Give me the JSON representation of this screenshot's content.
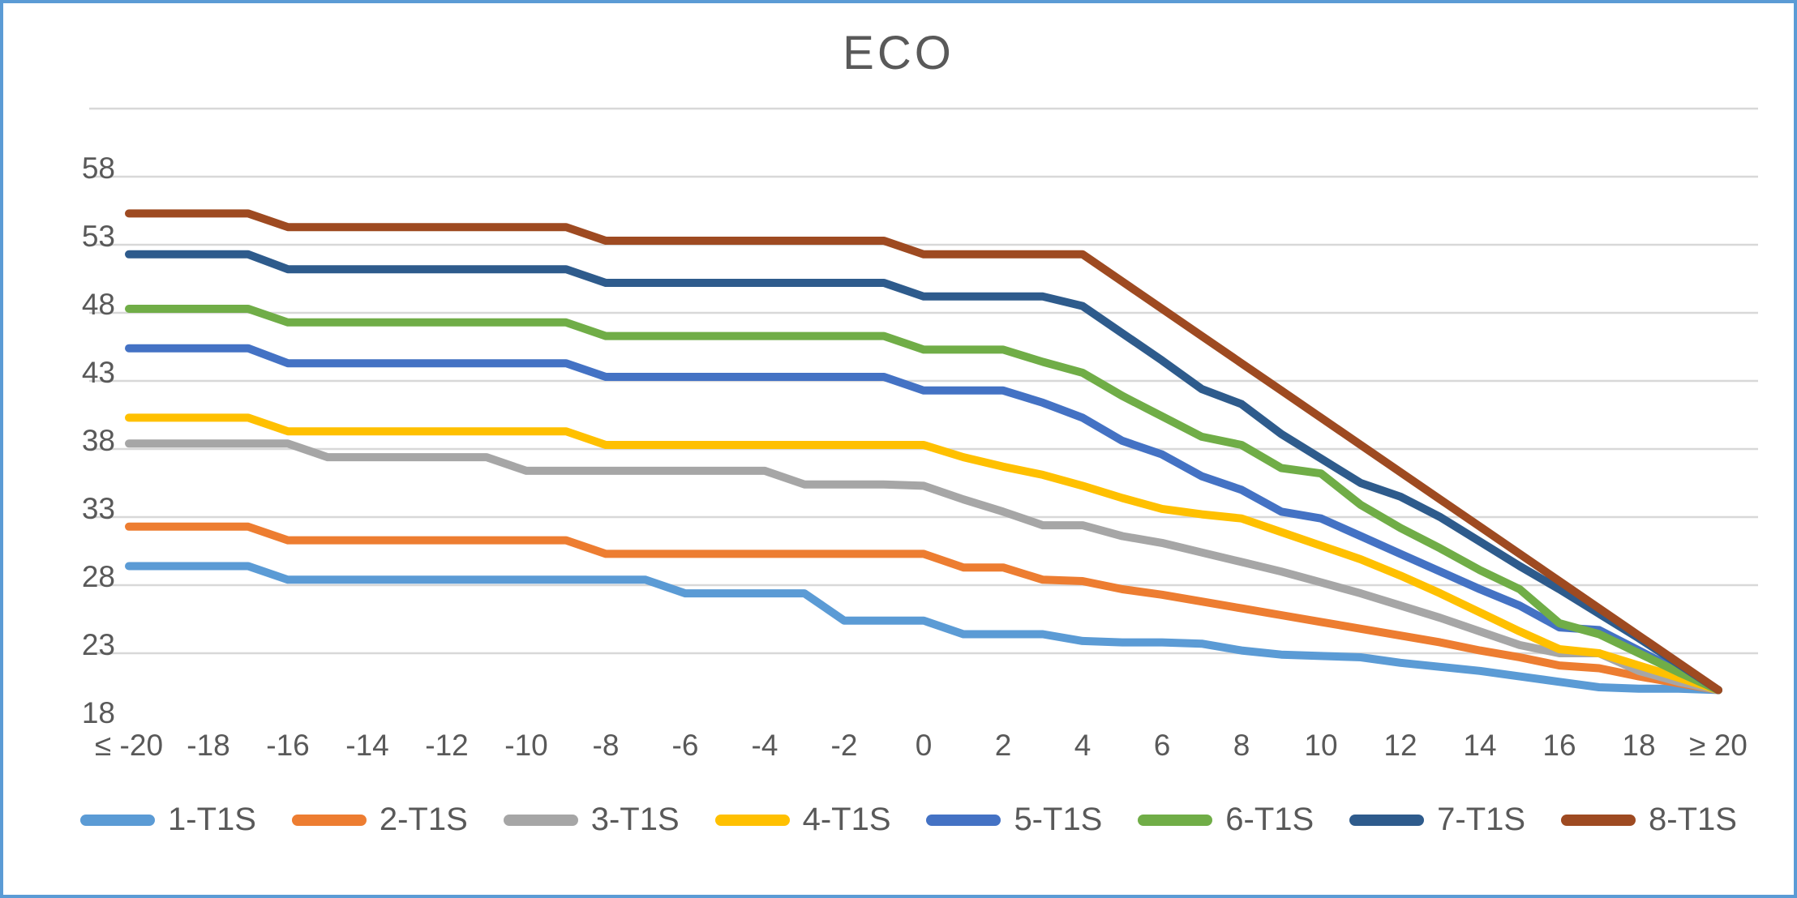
{
  "title": "ECO",
  "colors": {
    "frame": "#5B9BD5",
    "grid": "#D8D8D8",
    "text": "#595959",
    "background": "#FFFFFF"
  },
  "chart_data": {
    "type": "line",
    "title": "ECO",
    "xlabel": "",
    "ylabel": "",
    "grid": true,
    "legend_position": "bottom",
    "x_start": -20,
    "x_step": 1,
    "x_tick_labels": [
      "≤ -20",
      "-18",
      "-16",
      "-14",
      "-12",
      "-10",
      "-8",
      "-6",
      "-4",
      "-2",
      "0",
      "2",
      "4",
      "6",
      "8",
      "10",
      "12",
      "14",
      "16",
      "18",
      "≥ 20"
    ],
    "y_axis": {
      "min": 18,
      "max": 63,
      "step": 5,
      "labeled_values": [
        58,
        53,
        48,
        43,
        38,
        33,
        28,
        23,
        18
      ],
      "gridline_values": [
        63,
        58,
        53,
        48,
        43,
        38,
        33,
        28,
        23
      ]
    },
    "series": [
      {
        "name": "1-T1S",
        "color": "#5B9BD5",
        "values": [
          29.4,
          29.4,
          29.4,
          29.4,
          28.4,
          28.4,
          28.4,
          28.4,
          28.4,
          28.4,
          28.4,
          28.4,
          28.4,
          28.4,
          27.4,
          27.4,
          27.4,
          27.4,
          25.4,
          25.4,
          25.4,
          24.4,
          24.4,
          24.4,
          23.9,
          23.8,
          23.8,
          23.7,
          23.2,
          22.9,
          22.8,
          22.7,
          22.3,
          22.0,
          21.7,
          21.3,
          20.9,
          20.5,
          20.4,
          20.4,
          20.3
        ]
      },
      {
        "name": "2-T1S",
        "color": "#ED7D31",
        "values": [
          32.3,
          32.3,
          32.3,
          32.3,
          31.3,
          31.3,
          31.3,
          31.3,
          31.3,
          31.3,
          31.3,
          31.3,
          30.3,
          30.3,
          30.3,
          30.3,
          30.3,
          30.3,
          30.3,
          30.3,
          30.3,
          29.3,
          29.3,
          28.4,
          28.3,
          27.7,
          27.3,
          26.8,
          26.3,
          25.8,
          25.3,
          24.8,
          24.3,
          23.8,
          23.2,
          22.7,
          22.1,
          21.9,
          21.3,
          20.8,
          20.3
        ]
      },
      {
        "name": "3-T1S",
        "color": "#A6A6A6",
        "values": [
          38.4,
          38.4,
          38.4,
          38.4,
          38.4,
          37.4,
          37.4,
          37.4,
          37.4,
          37.4,
          36.4,
          36.4,
          36.4,
          36.4,
          36.4,
          36.4,
          36.4,
          35.4,
          35.4,
          35.4,
          35.3,
          34.3,
          33.4,
          32.4,
          32.4,
          31.6,
          31.1,
          30.4,
          29.7,
          29.0,
          28.2,
          27.4,
          26.5,
          25.6,
          24.6,
          23.6,
          23.0,
          23.0,
          21.7,
          20.9,
          20.3
        ]
      },
      {
        "name": "4-T1S",
        "color": "#FFC000",
        "values": [
          40.3,
          40.3,
          40.3,
          40.3,
          39.3,
          39.3,
          39.3,
          39.3,
          39.3,
          39.3,
          39.3,
          39.3,
          38.3,
          38.3,
          38.3,
          38.3,
          38.3,
          38.3,
          38.3,
          38.3,
          38.3,
          37.4,
          36.7,
          36.1,
          35.3,
          34.4,
          33.6,
          33.2,
          32.9,
          31.9,
          30.9,
          29.9,
          28.7,
          27.4,
          26.0,
          24.6,
          23.3,
          23.0,
          22.1,
          21.2,
          20.3
        ]
      },
      {
        "name": "5-T1S",
        "color": "#4472C4",
        "values": [
          45.4,
          45.4,
          45.4,
          45.4,
          44.3,
          44.3,
          44.3,
          44.3,
          44.3,
          44.3,
          44.3,
          44.3,
          43.3,
          43.3,
          43.3,
          43.3,
          43.3,
          43.3,
          43.3,
          43.3,
          42.3,
          42.3,
          42.3,
          41.4,
          40.3,
          38.6,
          37.6,
          36.0,
          35.0,
          33.4,
          32.9,
          31.6,
          30.3,
          29.0,
          27.7,
          26.5,
          24.9,
          24.7,
          23.2,
          21.7,
          20.3
        ]
      },
      {
        "name": "6-T1S",
        "color": "#70AD47",
        "values": [
          48.3,
          48.3,
          48.3,
          48.3,
          47.3,
          47.3,
          47.3,
          47.3,
          47.3,
          47.3,
          47.3,
          47.3,
          46.3,
          46.3,
          46.3,
          46.3,
          46.3,
          46.3,
          46.3,
          46.3,
          45.3,
          45.3,
          45.3,
          44.4,
          43.6,
          41.9,
          40.4,
          38.9,
          38.3,
          36.6,
          36.2,
          33.9,
          32.2,
          30.7,
          29.1,
          27.7,
          25.2,
          24.4,
          23.0,
          21.6,
          20.3
        ]
      },
      {
        "name": "7-T1S",
        "color": "#2E5B8C",
        "values": [
          52.3,
          52.3,
          52.3,
          52.3,
          51.2,
          51.2,
          51.2,
          51.2,
          51.2,
          51.2,
          51.2,
          51.2,
          50.2,
          50.2,
          50.2,
          50.2,
          50.2,
          50.2,
          50.2,
          50.2,
          49.2,
          49.2,
          49.2,
          49.2,
          48.5,
          46.5,
          44.5,
          42.4,
          41.3,
          39.1,
          37.3,
          35.5,
          34.5,
          33.0,
          31.2,
          29.4,
          27.7,
          25.9,
          24.1,
          22.2,
          20.3
        ]
      },
      {
        "name": "8-T1S",
        "color": "#9E4A21",
        "values": [
          55.3,
          55.3,
          55.3,
          55.3,
          54.3,
          54.3,
          54.3,
          54.3,
          54.3,
          54.3,
          54.3,
          54.3,
          53.3,
          53.3,
          53.3,
          53.3,
          53.3,
          53.3,
          53.3,
          53.3,
          52.3,
          52.3,
          52.3,
          52.3,
          52.3,
          50.3,
          48.3,
          46.3,
          44.3,
          42.3,
          40.3,
          38.3,
          36.3,
          34.3,
          32.3,
          30.3,
          28.3,
          26.3,
          24.3,
          22.3,
          20.3
        ]
      }
    ]
  }
}
